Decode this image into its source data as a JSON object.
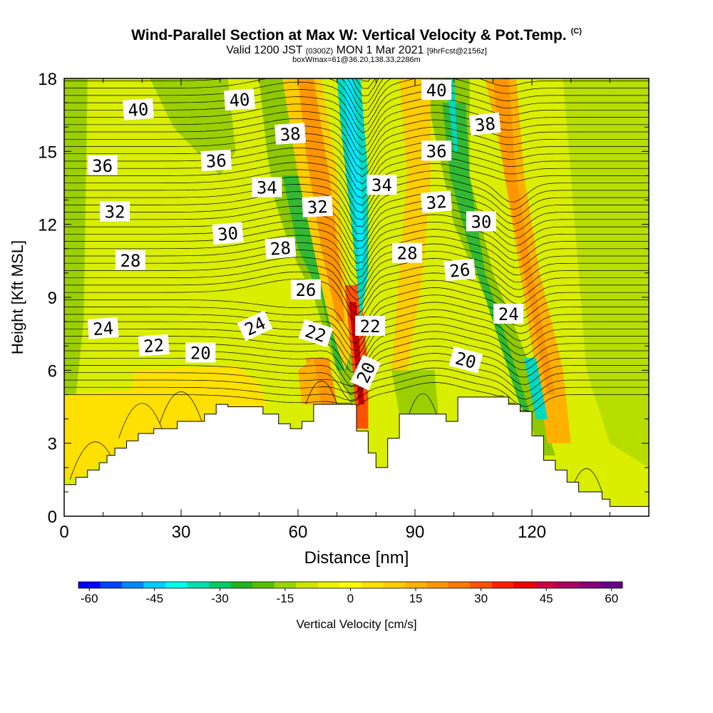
{
  "title": {
    "main": "Wind-Parallel Section at Max W: Vertical Velocity & Pot.Temp.",
    "copyright": "(C)",
    "valid_prefix": "Valid 1200 JST",
    "valid_utc": "(0300Z)",
    "valid_date": "MON 1 Mar 2021",
    "forecast": "[9hrFcst@2156z]",
    "box_info": "boxWmax=61@36.20,138.33,2286m"
  },
  "chart_data": {
    "type": "heatmap",
    "xlabel": "Distance [nm]",
    "ylabel": "Height [Kft MSL]",
    "xlim": [
      0,
      150
    ],
    "ylim": [
      0,
      18
    ],
    "x_ticks": [
      0,
      30,
      60,
      90,
      120
    ],
    "y_ticks": [
      0,
      3,
      6,
      9,
      12,
      15,
      18
    ],
    "colorbar": {
      "label": "Vertical Velocity [cm/s]",
      "range": [
        -60,
        65
      ],
      "tick_values": [
        -60,
        -45,
        -30,
        -15,
        0,
        15,
        30,
        45,
        60
      ],
      "colors": [
        "#0000ff",
        "#0044ff",
        "#0088ff",
        "#00ccff",
        "#00ffee",
        "#00e0b0",
        "#00cc66",
        "#22b422",
        "#55c000",
        "#99d600",
        "#cce600",
        "#eef200",
        "#ffff00",
        "#ffe000",
        "#ffcc00",
        "#ffb000",
        "#ff9600",
        "#ff7800",
        "#ff5200",
        "#ff2000",
        "#ee0000",
        "#cc0044",
        "#aa0066",
        "#880077",
        "#660088"
      ]
    },
    "terrain_profile": [
      [
        0,
        1.3
      ],
      [
        3,
        1.3
      ],
      [
        3,
        1.6
      ],
      [
        6,
        1.6
      ],
      [
        6,
        1.9
      ],
      [
        9,
        1.9
      ],
      [
        9,
        2.2
      ],
      [
        11,
        2.2
      ],
      [
        11,
        2.5
      ],
      [
        13,
        2.5
      ],
      [
        13,
        2.8
      ],
      [
        16,
        2.8
      ],
      [
        16,
        3.1
      ],
      [
        19,
        3.1
      ],
      [
        19,
        3.4
      ],
      [
        23,
        3.4
      ],
      [
        23,
        3.6
      ],
      [
        29,
        3.6
      ],
      [
        29,
        3.9
      ],
      [
        36,
        3.9
      ],
      [
        36,
        4.2
      ],
      [
        39,
        4.2
      ],
      [
        39,
        4.6
      ],
      [
        42,
        4.6
      ],
      [
        42,
        4.5
      ],
      [
        51,
        4.5
      ],
      [
        51,
        4.2
      ],
      [
        55,
        4.2
      ],
      [
        55,
        3.8
      ],
      [
        58,
        3.8
      ],
      [
        58,
        3.6
      ],
      [
        61,
        3.6
      ],
      [
        61,
        3.9
      ],
      [
        64,
        3.9
      ],
      [
        64,
        4.6
      ],
      [
        75,
        4.6
      ],
      [
        75,
        3.5
      ],
      [
        78,
        3.5
      ],
      [
        78,
        2.6
      ],
      [
        80,
        2.6
      ],
      [
        80,
        2.0
      ],
      [
        83,
        2.0
      ],
      [
        83,
        3.2
      ],
      [
        86,
        3.2
      ],
      [
        86,
        4.2
      ],
      [
        98,
        4.2
      ],
      [
        98,
        3.9
      ],
      [
        101,
        3.9
      ],
      [
        101,
        4.9
      ],
      [
        114,
        4.9
      ],
      [
        114,
        4.6
      ],
      [
        117,
        4.6
      ],
      [
        117,
        4.3
      ],
      [
        120,
        4.3
      ],
      [
        120,
        3.3
      ],
      [
        123,
        3.3
      ],
      [
        123,
        2.3
      ],
      [
        126,
        2.3
      ],
      [
        126,
        1.9
      ],
      [
        129,
        1.9
      ],
      [
        129,
        1.4
      ],
      [
        132,
        1.4
      ],
      [
        132,
        1.0
      ],
      [
        138,
        1.0
      ],
      [
        138,
        0.7
      ],
      [
        140,
        0.7
      ],
      [
        140,
        0.4
      ],
      [
        150,
        0.4
      ]
    ],
    "contour_labels": [
      {
        "label": "40",
        "x": 19,
        "y": 16.7,
        "angle": -4
      },
      {
        "label": "40",
        "x": 45,
        "y": 17.1,
        "angle": -4
      },
      {
        "label": "40",
        "x": 95.5,
        "y": 17.5,
        "angle": 0
      },
      {
        "label": "38",
        "x": 58,
        "y": 15.7,
        "angle": -4
      },
      {
        "label": "38",
        "x": 108,
        "y": 16.1,
        "angle": -6
      },
      {
        "label": "36",
        "x": 9.8,
        "y": 14.4,
        "angle": 0
      },
      {
        "label": "36",
        "x": 39,
        "y": 14.6,
        "angle": -3
      },
      {
        "label": "36",
        "x": 95.5,
        "y": 15.0,
        "angle": 0
      },
      {
        "label": "34",
        "x": 52,
        "y": 13.5,
        "angle": 0
      },
      {
        "label": "34",
        "x": 81.5,
        "y": 13.6,
        "angle": 0
      },
      {
        "label": "32",
        "x": 13,
        "y": 12.5,
        "angle": 0
      },
      {
        "label": "32",
        "x": 65,
        "y": 12.7,
        "angle": -3
      },
      {
        "label": "32",
        "x": 95.5,
        "y": 12.9,
        "angle": -5
      },
      {
        "label": "30",
        "x": 42,
        "y": 11.6,
        "angle": -5
      },
      {
        "label": "30",
        "x": 107,
        "y": 12.1,
        "angle": 0
      },
      {
        "label": "28",
        "x": 17,
        "y": 10.5,
        "angle": 0
      },
      {
        "label": "28",
        "x": 55.5,
        "y": 11.0,
        "angle": -4
      },
      {
        "label": "28",
        "x": 88,
        "y": 10.8,
        "angle": 0
      },
      {
        "label": "26",
        "x": 62,
        "y": 9.3,
        "angle": 0
      },
      {
        "label": "26",
        "x": 101.5,
        "y": 10.1,
        "angle": -5
      },
      {
        "label": "24",
        "x": 10,
        "y": 7.7,
        "angle": -4
      },
      {
        "label": "24",
        "x": 49,
        "y": 7.8,
        "angle": -25
      },
      {
        "label": "24",
        "x": 114,
        "y": 8.3,
        "angle": 0
      },
      {
        "label": "22",
        "x": 23,
        "y": 7.0,
        "angle": -4
      },
      {
        "label": "22",
        "x": 64.5,
        "y": 7.5,
        "angle": 18
      },
      {
        "label": "22",
        "x": 78.5,
        "y": 7.8,
        "angle": 0
      },
      {
        "label": "20",
        "x": 35,
        "y": 6.7,
        "angle": 0
      },
      {
        "label": "20",
        "x": 77.5,
        "y": 5.9,
        "angle": -65
      },
      {
        "label": "20",
        "x": 103,
        "y": 6.4,
        "angle": 15
      }
    ]
  }
}
